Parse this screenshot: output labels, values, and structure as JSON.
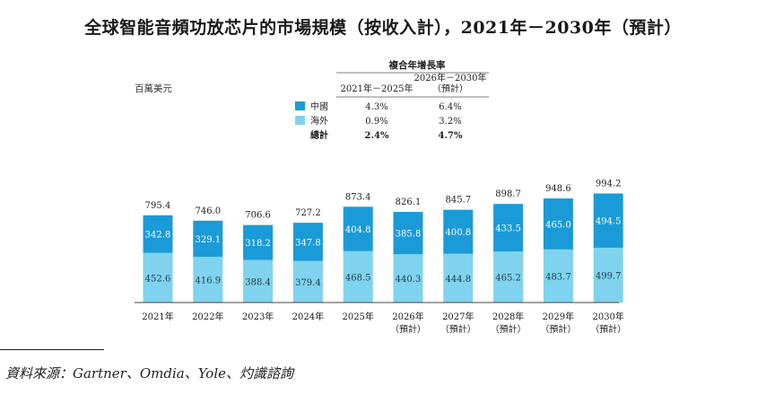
{
  "title": "全球智能音頻功放芯片的市場規模（按收入計），2021年－2030年（預計）",
  "unit_label": "百萬美元",
  "cagr_table": {
    "header": "複合年增長率",
    "col1": "2021年－2025年",
    "col2_line1": "2026年－2030年",
    "col2_line2": "（預計）",
    "rows": [
      {
        "label": "中國",
        "v1": "4.3%",
        "v2": "6.4%",
        "color": "#1a9bd7"
      },
      {
        "label": "海外",
        "v1": "0.9%",
        "v2": "3.2%",
        "color": "#7fd3ee"
      },
      {
        "label": "總計",
        "v1": "2.4%",
        "v2": "4.7%",
        "bold": true
      }
    ]
  },
  "chart_data": {
    "type": "bar",
    "stacked": true,
    "categories": [
      "2021年",
      "2022年",
      "2023年",
      "2024年",
      "2025年",
      "2026年",
      "2027年",
      "2028年",
      "2029年",
      "2030年"
    ],
    "sublabels": [
      "",
      "",
      "",
      "",
      "",
      "（預計）",
      "（預計）",
      "（預計）",
      "（預計）",
      "（預計）"
    ],
    "series": [
      {
        "name": "海外",
        "color": "#7fd3ee",
        "values": [
          452.6,
          416.9,
          388.4,
          379.4,
          468.5,
          440.3,
          444.8,
          465.2,
          483.7,
          499.7
        ]
      },
      {
        "name": "中國",
        "color": "#1a9bd7",
        "values": [
          342.8,
          329.1,
          318.2,
          347.8,
          404.8,
          385.8,
          400.8,
          433.5,
          465.0,
          494.5
        ]
      }
    ],
    "totals": [
      795.4,
      746.0,
      706.6,
      727.2,
      873.4,
      826.1,
      845.7,
      898.7,
      948.6,
      994.2
    ],
    "value_labels": [
      [
        "452.6",
        "416.9",
        "388.4",
        "379.4",
        "468.5",
        "440.3",
        "444.8",
        "465.2",
        "483.7",
        "499.7"
      ],
      [
        "342.8",
        "329.1",
        "318.2",
        "347.8",
        "404.8",
        "385.8",
        "400.8",
        "433.5",
        "465.0",
        "494.5"
      ]
    ],
    "total_labels": [
      "795.4",
      "746.0",
      "706.6",
      "727.2",
      "873.4",
      "826.1",
      "845.7",
      "898.7",
      "948.6",
      "994.2"
    ]
  },
  "source": "資料來源：Gartner、Omdia、Yole、灼識諮詢"
}
